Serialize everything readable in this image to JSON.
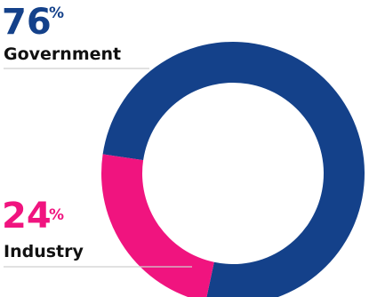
{
  "chart_data": {
    "type": "pie",
    "donut": true,
    "categories": [
      "Government",
      "Industry"
    ],
    "values": [
      76,
      24
    ],
    "value_suffix": "%",
    "colors": [
      "#14418a",
      "#f0147f"
    ],
    "label_colors": [
      "#14418a",
      "#f0147f"
    ],
    "category_label_color": "#111111",
    "leader_line_color": "#cfcfcf",
    "slices": [
      {
        "name": "Government",
        "value": "76",
        "suffix": "%"
      },
      {
        "name": "Industry",
        "value": "24",
        "suffix": "%"
      }
    ]
  }
}
